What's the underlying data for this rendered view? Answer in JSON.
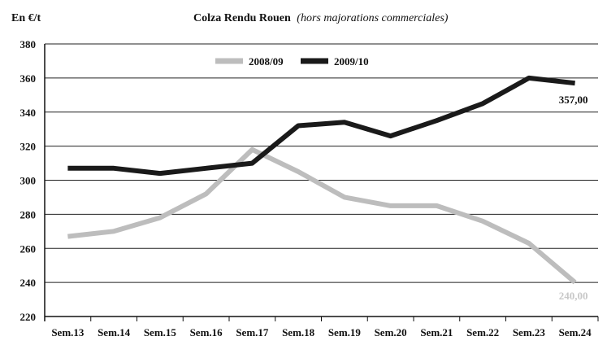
{
  "chart_data": {
    "type": "line",
    "title": "Colza Rendu Rouen",
    "subtitle": "(hors majorations commerciales)",
    "ylabel": "En €/t",
    "xlabel": "",
    "categories": [
      "Sem.13",
      "Sem.14",
      "Sem.15",
      "Sem.16",
      "Sem.17",
      "Sem.18",
      "Sem.19",
      "Sem.20",
      "Sem.21",
      "Sem.22",
      "Sem.23",
      "Sem.24"
    ],
    "yticks": [
      "220",
      "240",
      "260",
      "280",
      "300",
      "320",
      "340",
      "360",
      "380"
    ],
    "ylim": [
      220,
      380
    ],
    "grid": true,
    "legend_position": "top-center",
    "series": [
      {
        "name": "2008/09",
        "color": "#bdbdbd",
        "values": [
          267,
          270,
          278,
          292,
          318,
          305,
          290,
          285,
          285,
          276,
          263,
          240
        ],
        "end_label": "240,00"
      },
      {
        "name": "2009/10",
        "color": "#1a1a1a",
        "values": [
          307,
          307,
          304,
          307,
          310,
          332,
          334,
          326,
          335,
          345,
          360,
          357
        ],
        "end_label": "357,00"
      }
    ]
  }
}
